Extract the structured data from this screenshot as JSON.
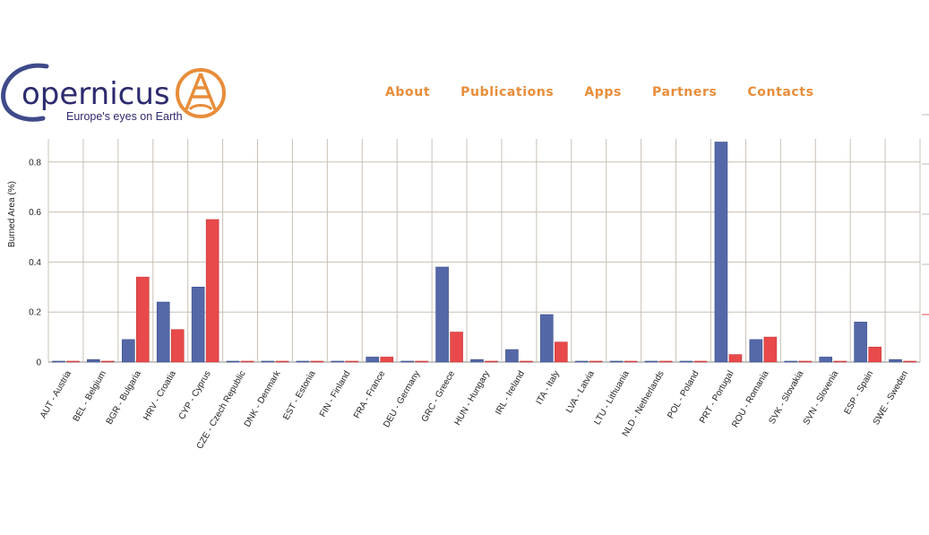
{
  "logo": {
    "brand_text": "opernicus",
    "tagline": "Europe's eyes on Earth"
  },
  "nav": {
    "items": [
      "About",
      "Publications",
      "Apps",
      "Partners",
      "Contacts"
    ]
  },
  "colors": {
    "series_blue": "#5468a8",
    "series_red": "#e8494a",
    "nav_orange": "#e88d3a",
    "logo_navy": "#2d2b6e",
    "grid": "#c9c0b6"
  },
  "chart_data": {
    "type": "bar",
    "ylabel": "Burned Area (%)",
    "ylim": [
      0,
      0.88
    ],
    "yticks": [
      "0",
      "0.2",
      "0.4",
      "0.6",
      "0.8"
    ],
    "ytick_values": [
      0,
      0.2,
      0.4,
      0.6,
      0.8
    ],
    "grid": true,
    "categories": [
      "AUT - Austria",
      "BEL - Belgium",
      "BGR - Bulgaria",
      "HRV - Croatia",
      "CYP - Cyprus",
      "CZE - Czech Republic",
      "DNK - Denmark",
      "EST - Estonia",
      "FIN - Finland",
      "FRA - France",
      "DEU - Germany",
      "GRC - Greece",
      "HUN - Hungary",
      "IRL - Ireland",
      "ITA - Italy",
      "LVA - Latvia",
      "LTU - Lithuania",
      "NLD - Netherlands",
      "POL - Poland",
      "PRT - Portugal",
      "ROU - Romania",
      "SVK - Slovakia",
      "SVN - Slovenia",
      "ESP - Spain",
      "SWE - Sweden"
    ],
    "series": [
      {
        "color": "#5468a8",
        "values": [
          0,
          0.01,
          0.09,
          0.24,
          0.3,
          0,
          0,
          0,
          0,
          0.02,
          0,
          0.38,
          0.01,
          0.05,
          0.19,
          0,
          0,
          0,
          0,
          0.88,
          0.09,
          0,
          0.02,
          0.16,
          0.01
        ]
      },
      {
        "color": "#e8494a",
        "values": [
          0,
          0,
          0.34,
          0.13,
          0.57,
          0,
          0,
          0,
          0,
          0.02,
          0,
          0.12,
          0,
          0,
          0.08,
          0,
          0,
          0,
          0,
          0.03,
          0.1,
          0,
          0,
          0.06,
          0
        ]
      }
    ]
  }
}
